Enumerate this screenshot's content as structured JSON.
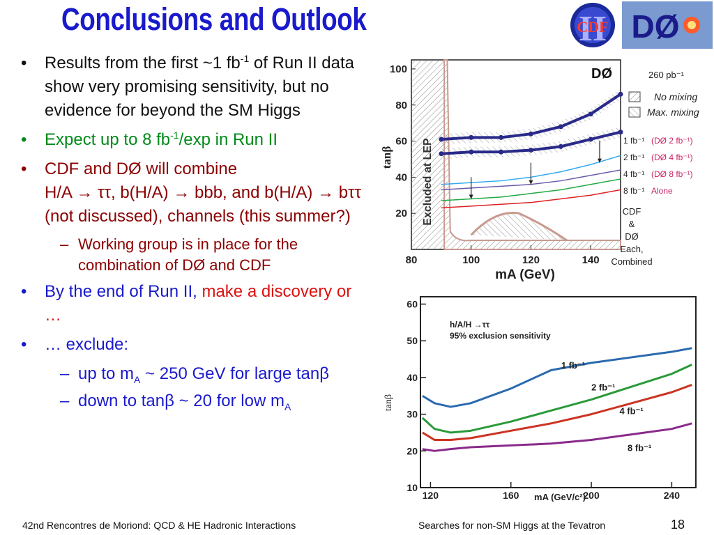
{
  "title": "Conclusions and Outlook",
  "logos": {
    "cdf_text": "CDF",
    "cdf_roman": "II",
    "d0_text": "DØ"
  },
  "bullets": {
    "b1_part1": "Results from the first ~1 fb",
    "b1_sup": "-1",
    "b1_part2": " of Run II data show very promising sensitivity, but no evidence for beyond the SM Higgs",
    "b2_part1": "Expect up to 8 fb",
    "b2_sup": "-1",
    "b2_part2": "/exp in Run II",
    "b3_line1": "CDF and DØ will combine",
    "b3_line2": "H/A → ττ, b(H/A) → bbb, and b(H/A) → bττ (not discussed), channels (this summer?)",
    "b3_sub": "Working group is in place for the combination of DØ and CDF",
    "b4_part1": "By the end of Run II, ",
    "b4_part2": "make a discovery or …",
    "b5": "… exclude:",
    "b5_sub1_part1": "up to m",
    "b5_sub1_subscript": "A",
    "b5_sub1_part2": " ~ 250 GeV for large tanβ",
    "b5_sub2_part1": "down to tanβ ~ 20 for low m",
    "b5_sub2_subscript": "A"
  },
  "chart_data": [
    {
      "type": "line",
      "title": "DØ",
      "xlabel": "mA (GeV)",
      "ylabel": "tanβ",
      "xlim": [
        80,
        150
      ],
      "ylim": [
        0,
        105
      ],
      "xticks": [
        80,
        100,
        120,
        140
      ],
      "yticks": [
        20,
        40,
        60,
        80,
        100
      ],
      "lep_label": "Excluded at LEP",
      "lumi_label": "260 pb⁻¹",
      "legend_nomix": "No mixing",
      "legend_maxmix": "Max. mixing",
      "right_labels": [
        "1 fb⁻¹",
        "2 fb⁻¹",
        "4 fb⁻¹",
        "8 fb⁻¹"
      ],
      "right_labels_d0": [
        "(DØ 2 fb⁻¹)",
        "(DØ 4 fb⁻¹)",
        "(DØ 8 fb⁻¹)",
        "Alone"
      ],
      "cdf_note": [
        "CDF",
        "&",
        "DØ",
        "Each,",
        "Combined"
      ],
      "x": [
        90,
        100,
        110,
        120,
        130,
        140,
        150
      ],
      "series": [
        {
          "name": "",
          "color": "#2a2a8a",
          "values": [
            61,
            62,
            62,
            64,
            68,
            75,
            86
          ]
        },
        {
          "name": "",
          "color": "#2a2a8a",
          "values": [
            53,
            54,
            54,
            55,
            57,
            61,
            65
          ]
        },
        {
          "name": "1 fb⁻¹",
          "color": "#33aaee",
          "values": [
            36,
            37,
            38,
            40,
            43,
            47,
            52
          ]
        },
        {
          "name": "2 fb⁻¹",
          "color": "#6a5aaa",
          "values": [
            33,
            34,
            35,
            36,
            38,
            41,
            44
          ]
        },
        {
          "name": "4 fb⁻¹",
          "color": "#22aa44",
          "values": [
            27,
            28,
            29,
            31,
            33,
            36,
            39
          ]
        },
        {
          "name": "8 fb⁻¹",
          "color": "#dd2222",
          "values": [
            23,
            24,
            25,
            26,
            28,
            30,
            33
          ]
        }
      ]
    },
    {
      "type": "line",
      "title": "h/A/H →ττ",
      "subtitle": "95% exclusion sensitivity",
      "xlabel": "mA (GeV/c²)",
      "ylabel": "tanβ",
      "xlim": [
        115,
        252
      ],
      "ylim": [
        10,
        62
      ],
      "xticks": [
        120,
        160,
        200,
        240
      ],
      "yticks": [
        10,
        20,
        30,
        40,
        50,
        60
      ],
      "x": [
        116,
        122,
        130,
        140,
        160,
        180,
        200,
        220,
        240,
        250
      ],
      "series": [
        {
          "name": "1 fb⁻¹",
          "color": "#2a6ab0",
          "values": [
            35,
            33,
            32,
            33,
            37,
            42,
            44,
            45.5,
            47,
            48
          ]
        },
        {
          "name": "2 fb⁻¹",
          "color": "#2a9a3a",
          "values": [
            29,
            26,
            25,
            25.5,
            28,
            31,
            34,
            37.5,
            41,
            43.5
          ]
        },
        {
          "name": "4 fb⁻¹",
          "color": "#cc3322",
          "values": [
            25,
            23,
            23,
            23.5,
            25.5,
            27.5,
            30,
            33,
            36,
            38
          ]
        },
        {
          "name": "8 fb⁻¹",
          "color": "#8a2a8a",
          "values": [
            20.5,
            20,
            20.5,
            21,
            21.5,
            22,
            23,
            24.5,
            26,
            27.5
          ]
        }
      ]
    }
  ],
  "footer": {
    "left": "42nd Rencontres de Moriond: QCD & HE Hadronic Interactions",
    "center": "Searches for non-SM Higgs at the Tevatron",
    "page": "18"
  }
}
